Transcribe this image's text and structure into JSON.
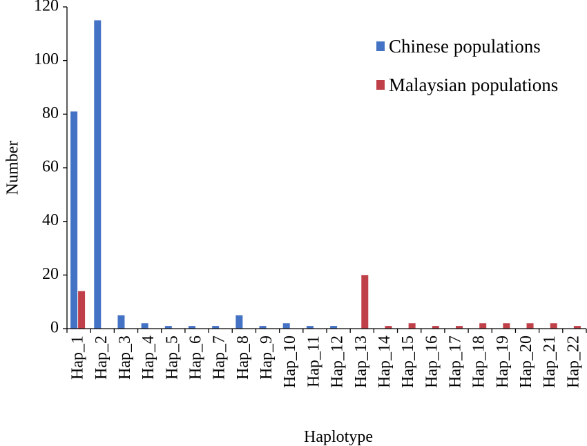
{
  "chart_data": {
    "type": "bar",
    "xlabel": "Haplotype",
    "ylabel": "Number",
    "ylim": [
      0,
      120
    ],
    "yticks": [
      0,
      20,
      40,
      60,
      80,
      100,
      120
    ],
    "categories": [
      "Hap_1",
      "Hap_2",
      "Hap_3",
      "Hap_4",
      "Hap_5",
      "Hap_6",
      "Hap_7",
      "Hap_8",
      "Hap_9",
      "Hap_10",
      "Hap_11",
      "Hap_12",
      "Hap_13",
      "Hap_14",
      "Hap_15",
      "Hap_16",
      "Hap_17",
      "Hap_18",
      "Hap_19",
      "Hap_20",
      "Hap_21",
      "Hap_22"
    ],
    "series": [
      {
        "name": "Chinese populations",
        "color": "#4472C4",
        "values": [
          81,
          115,
          5,
          2,
          1,
          1,
          1,
          5,
          1,
          2,
          1,
          1,
          0,
          0,
          0,
          0,
          0,
          0,
          0,
          0,
          0,
          0
        ]
      },
      {
        "name": "Malaysian populations",
        "color": "#C0404A",
        "values": [
          14,
          0,
          0,
          0,
          0,
          0,
          0,
          0,
          0,
          0,
          0,
          0,
          20,
          1,
          2,
          1,
          1,
          2,
          2,
          2,
          2,
          1
        ]
      }
    ],
    "legend_position": "top-right",
    "grid": false
  }
}
